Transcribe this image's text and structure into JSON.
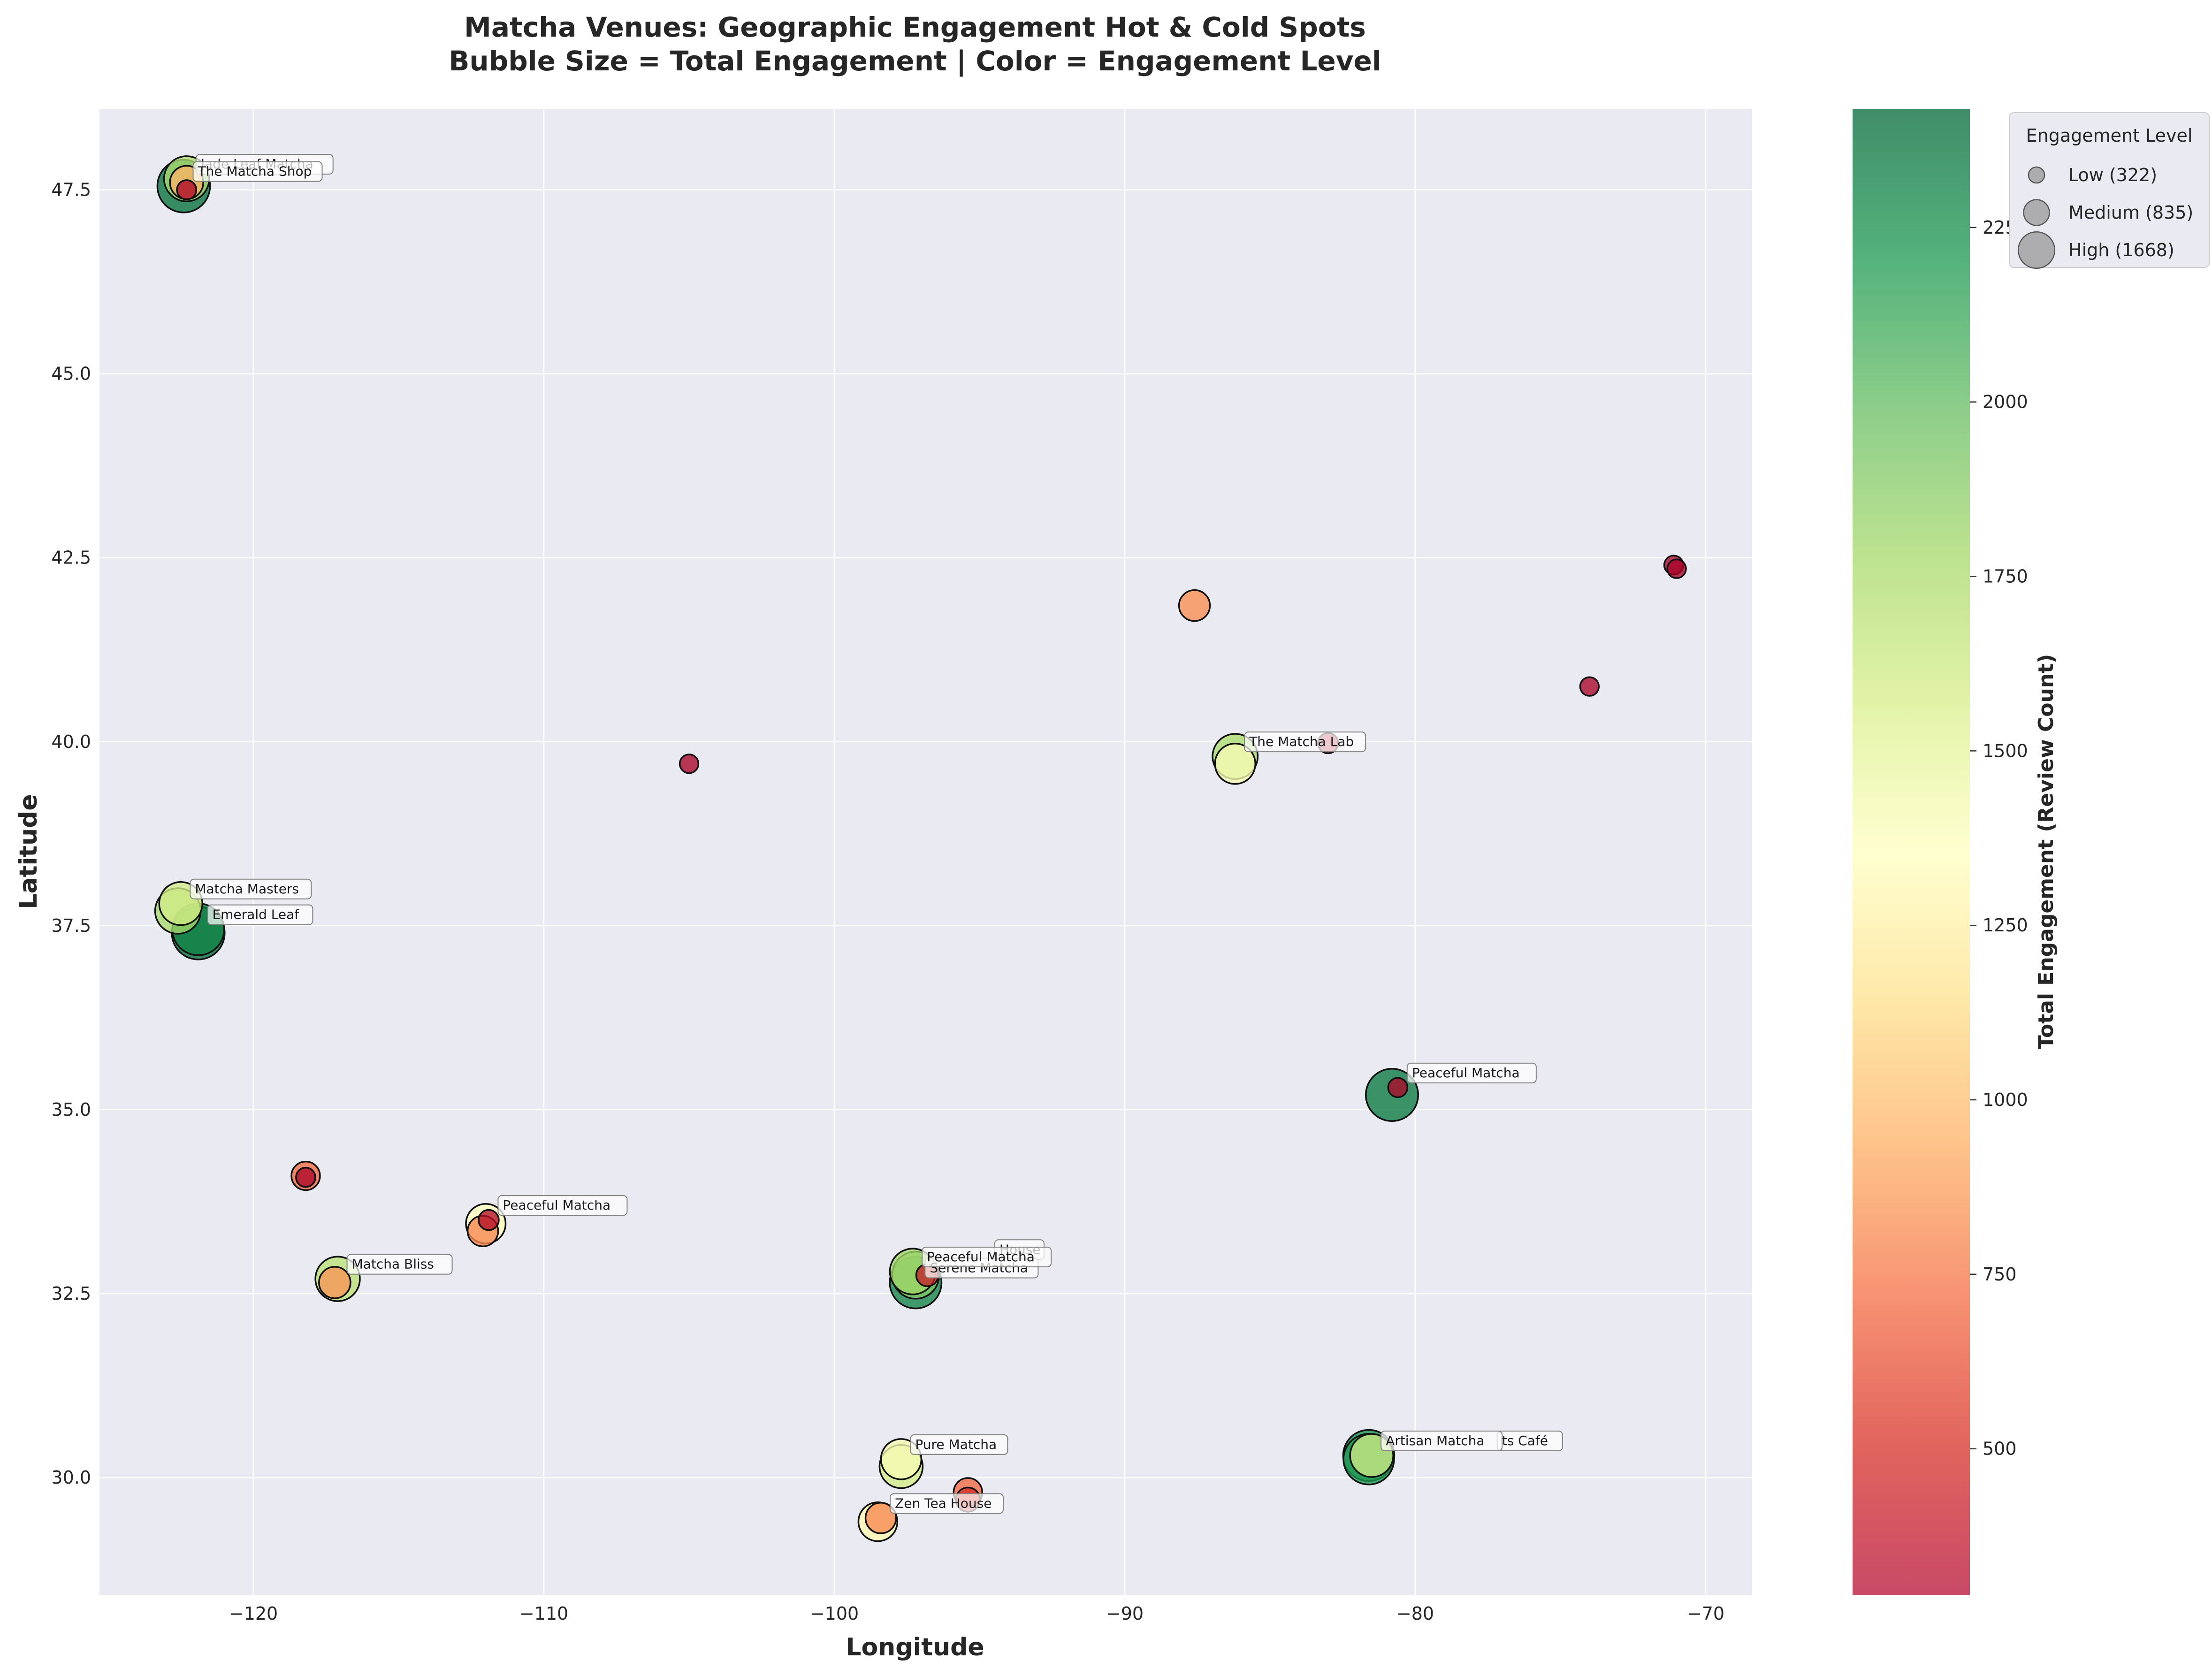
{
  "chart_data": {
    "type": "scatter",
    "title": "Matcha Venues: Geographic Engagement Hot & Cold Spots",
    "subtitle": "Bubble Size = Total Engagement | Color = Engagement Level",
    "xlabel": "Longitude",
    "ylabel": "Latitude",
    "xlim": [
      -125.3,
      -68.4
    ],
    "ylim": [
      28.4,
      48.6
    ],
    "x_ticks": [
      -120,
      -110,
      -100,
      -90,
      -80,
      -70
    ],
    "x_tick_labels": [
      "−120",
      "−110",
      "−100",
      "−90",
      "−80",
      "−70"
    ],
    "y_ticks": [
      30.0,
      32.5,
      35.0,
      37.5,
      40.0,
      42.5,
      45.0,
      47.5
    ],
    "y_tick_labels": [
      "30.0",
      "32.5",
      "35.0",
      "37.5",
      "40.0",
      "42.5",
      "45.0",
      "47.5"
    ],
    "grid": true,
    "colorbar": {
      "label": "Total Engagement (Review Count)",
      "range": [
        290,
        2420
      ],
      "colormap": "RdYlGn",
      "ticks": [
        500,
        750,
        1000,
        1250,
        1500,
        1750,
        2000,
        2250
      ],
      "tick_labels": [
        "500",
        "750",
        "1000",
        "1250",
        "1500",
        "1750",
        "2000",
        "2250"
      ]
    },
    "legend": {
      "title": "Engagement Level",
      "placement": "upper-right-outside",
      "items": [
        {
          "label": "Low (322)",
          "value": 322
        },
        {
          "label": "Medium (835)",
          "value": 835
        },
        {
          "label": "High (1668)",
          "value": 1668
        }
      ]
    },
    "points": [
      {
        "lon": -122.4,
        "lat": 47.55,
        "engagement": 2380
      },
      {
        "lon": -122.3,
        "lat": 47.65,
        "engagement": 1750
      },
      {
        "lon": -122.3,
        "lat": 47.6,
        "engagement": 950
      },
      {
        "lon": -122.3,
        "lat": 47.5,
        "engagement": 320
      },
      {
        "lon": -122.6,
        "lat": 37.7,
        "engagement": 1780
      },
      {
        "lon": -122.5,
        "lat": 37.8,
        "engagement": 1600
      },
      {
        "lon": -121.9,
        "lat": 37.4,
        "engagement": 2400
      },
      {
        "lon": -121.9,
        "lat": 37.45,
        "engagement": 2300
      },
      {
        "lon": -118.2,
        "lat": 34.1,
        "engagement": 700
      },
      {
        "lon": -118.2,
        "lat": 34.08,
        "engagement": 320
      },
      {
        "lon": -117.1,
        "lat": 32.7,
        "engagement": 1700
      },
      {
        "lon": -117.2,
        "lat": 32.65,
        "engagement": 850
      },
      {
        "lon": -112.0,
        "lat": 33.45,
        "engagement": 1350
      },
      {
        "lon": -112.1,
        "lat": 33.35,
        "engagement": 800
      },
      {
        "lon": -111.9,
        "lat": 33.5,
        "engagement": 350
      },
      {
        "lon": -105.0,
        "lat": 39.7,
        "engagement": 300
      },
      {
        "lon": -97.7,
        "lat": 30.25,
        "engagement": 1400
      },
      {
        "lon": -97.7,
        "lat": 30.15,
        "engagement": 1600
      },
      {
        "lon": -98.5,
        "lat": 29.4,
        "engagement": 1300
      },
      {
        "lon": -98.4,
        "lat": 29.45,
        "engagement": 800
      },
      {
        "lon": -95.4,
        "lat": 29.8,
        "engagement": 700
      },
      {
        "lon": -95.4,
        "lat": 29.7,
        "engagement": 500
      },
      {
        "lon": -97.3,
        "lat": 32.8,
        "engagement": 1800
      },
      {
        "lon": -97.2,
        "lat": 32.75,
        "engagement": 1900
      },
      {
        "lon": -97.2,
        "lat": 32.65,
        "engagement": 2300
      },
      {
        "lon": -96.8,
        "lat": 32.75,
        "engagement": 420
      },
      {
        "lon": -87.6,
        "lat": 41.85,
        "engagement": 820
      },
      {
        "lon": -86.2,
        "lat": 39.8,
        "engagement": 1750
      },
      {
        "lon": -86.2,
        "lat": 39.7,
        "engagement": 1400
      },
      {
        "lon": -83.0,
        "lat": 39.98,
        "engagement": 350
      },
      {
        "lon": -80.8,
        "lat": 35.2,
        "engagement": 2350
      },
      {
        "lon": -80.6,
        "lat": 35.3,
        "engagement": 320
      },
      {
        "lon": -81.6,
        "lat": 30.3,
        "engagement": 2250
      },
      {
        "lon": -81.5,
        "lat": 30.3,
        "engagement": 1600
      },
      {
        "lon": -81.6,
        "lat": 30.25,
        "engagement": 2200
      },
      {
        "lon": -74.0,
        "lat": 40.75,
        "engagement": 300
      },
      {
        "lon": -71.1,
        "lat": 42.4,
        "engagement": 310
      },
      {
        "lon": -71.0,
        "lat": 42.35,
        "engagement": 300
      }
    ],
    "annotations": [
      {
        "text": "Jade Leaf Matcha",
        "lon": -122.3,
        "lat": 47.65
      },
      {
        "text": "The Matcha Shop",
        "lon": -122.4,
        "lat": 47.55
      },
      {
        "text": "Matcha Masters",
        "lon": -122.5,
        "lat": 37.8
      },
      {
        "text": "Emerald Leaf",
        "lon": -121.9,
        "lat": 37.45
      },
      {
        "text": "Peaceful Matcha",
        "lon": -111.9,
        "lat": 33.5
      },
      {
        "text": "Matcha Bliss",
        "lon": -117.1,
        "lat": 32.7
      },
      {
        "text": "House",
        "lon": -94.8,
        "lat": 32.9
      },
      {
        "text": "Serene Matcha",
        "lon": -97.2,
        "lat": 32.65
      },
      {
        "text": "Peaceful Matcha",
        "lon": -97.3,
        "lat": 32.8
      },
      {
        "text": "Pure Matcha",
        "lon": -97.7,
        "lat": 30.25
      },
      {
        "text": "Zen Tea House",
        "lon": -98.4,
        "lat": 29.45
      },
      {
        "text": "The Matcha Lab",
        "lon": -86.2,
        "lat": 39.8
      },
      {
        "text": "Peaceful Matcha",
        "lon": -80.6,
        "lat": 35.3
      },
      {
        "text": "ts Café",
        "lon": -77.5,
        "lat": 30.3
      },
      {
        "text": "Artisan Matcha",
        "lon": -81.5,
        "lat": 30.3
      }
    ]
  }
}
